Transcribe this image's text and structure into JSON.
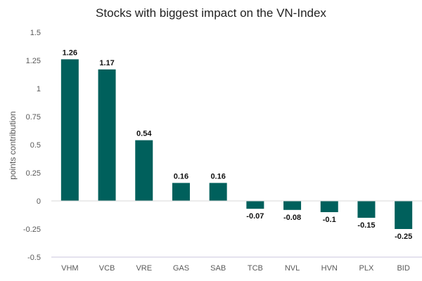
{
  "chart_data": {
    "type": "bar",
    "title": "Stocks with biggest impact on the VN-Index",
    "xlabel": "",
    "ylabel": "points contribution",
    "categories": [
      "VHM",
      "VCB",
      "VRE",
      "GAS",
      "SAB",
      "TCB",
      "NVL",
      "HVN",
      "PLX",
      "BID"
    ],
    "values": [
      1.26,
      1.17,
      0.54,
      0.16,
      0.16,
      -0.07,
      -0.08,
      -0.1,
      -0.15,
      -0.25
    ],
    "value_labels": [
      "1.26",
      "1.17",
      "0.54",
      "0.16",
      "0.16",
      "-0.07",
      "-0.08",
      "-0.1",
      "-0.15",
      "-0.25"
    ],
    "ylim": [
      -0.5,
      1.5
    ],
    "yticks": [
      1.5,
      1.25,
      1,
      0.75,
      0.5,
      0.25,
      0,
      -0.25,
      -0.5
    ],
    "ytick_labels": [
      "1.5",
      "1.25",
      "1",
      "0.75",
      "0.5",
      "0.25",
      "0",
      "-0.25",
      "-0.5"
    ],
    "bar_color": "#00605c",
    "grid": false,
    "legend": false
  }
}
